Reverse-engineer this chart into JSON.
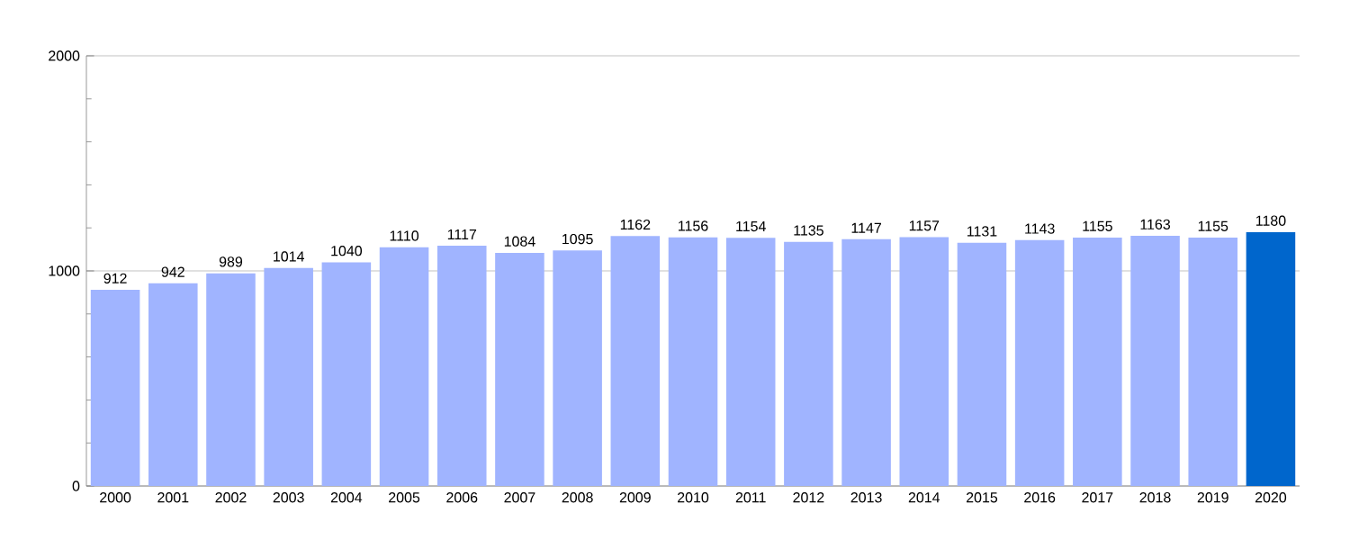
{
  "chart_data": {
    "type": "bar",
    "categories": [
      "2000",
      "2001",
      "2002",
      "2003",
      "2004",
      "2005",
      "2006",
      "2007",
      "2008",
      "2009",
      "2010",
      "2011",
      "2012",
      "2013",
      "2014",
      "2015",
      "2016",
      "2017",
      "2018",
      "2019",
      "2020"
    ],
    "values": [
      912,
      942,
      989,
      1014,
      1040,
      1110,
      1117,
      1084,
      1095,
      1162,
      1156,
      1154,
      1135,
      1147,
      1157,
      1131,
      1143,
      1155,
      1163,
      1155,
      1180
    ],
    "colors": [
      "#a0b4ff",
      "#a0b4ff",
      "#a0b4ff",
      "#a0b4ff",
      "#a0b4ff",
      "#a0b4ff",
      "#a0b4ff",
      "#a0b4ff",
      "#a0b4ff",
      "#a0b4ff",
      "#a0b4ff",
      "#a0b4ff",
      "#a0b4ff",
      "#a0b4ff",
      "#a0b4ff",
      "#a0b4ff",
      "#a0b4ff",
      "#a0b4ff",
      "#a0b4ff",
      "#a0b4ff",
      "#0066cc"
    ],
    "ylim": [
      0,
      2000
    ],
    "yticks": [
      0,
      1000,
      2000
    ],
    "grid": "y",
    "data_labels": true
  }
}
